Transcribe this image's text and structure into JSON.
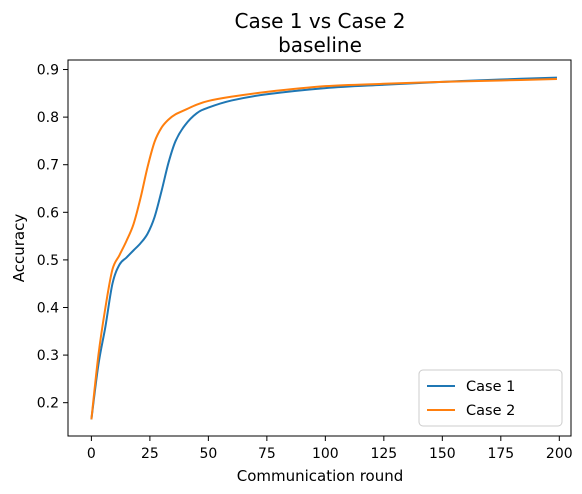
{
  "chart_data": {
    "type": "line",
    "title": "Case 1 vs Case 2",
    "subtitle": "baseline",
    "xlabel": "Communication round",
    "ylabel": "Accuracy",
    "xlim": [
      -10,
      205
    ],
    "ylim": [
      0.13,
      0.92
    ],
    "xticks": [
      0,
      25,
      50,
      75,
      100,
      125,
      150,
      175,
      200
    ],
    "yticks": [
      0.2,
      0.3,
      0.4,
      0.5,
      0.6,
      0.7,
      0.8,
      0.9
    ],
    "grid": false,
    "legend": {
      "placement": "lower-right"
    },
    "series": [
      {
        "name": "Case 1",
        "color": "#1f77b4",
        "x": [
          0,
          3,
          6,
          9,
          12,
          15,
          18,
          21,
          24,
          27,
          30,
          33,
          36,
          40,
          45,
          50,
          60,
          75,
          100,
          125,
          150,
          175,
          199
        ],
        "y": [
          0.165,
          0.28,
          0.36,
          0.45,
          0.49,
          0.505,
          0.52,
          0.535,
          0.555,
          0.59,
          0.645,
          0.705,
          0.75,
          0.783,
          0.808,
          0.82,
          0.835,
          0.848,
          0.861,
          0.868,
          0.874,
          0.879,
          0.883
        ]
      },
      {
        "name": "Case 2",
        "color": "#ff7f0e",
        "x": [
          0,
          3,
          6,
          9,
          12,
          15,
          18,
          21,
          24,
          27,
          30,
          33,
          36,
          40,
          45,
          50,
          60,
          75,
          100,
          125,
          150,
          175,
          199
        ],
        "y": [
          0.165,
          0.3,
          0.4,
          0.48,
          0.51,
          0.54,
          0.575,
          0.63,
          0.695,
          0.748,
          0.778,
          0.795,
          0.806,
          0.815,
          0.826,
          0.834,
          0.843,
          0.853,
          0.865,
          0.87,
          0.874,
          0.877,
          0.88
        ]
      }
    ]
  }
}
